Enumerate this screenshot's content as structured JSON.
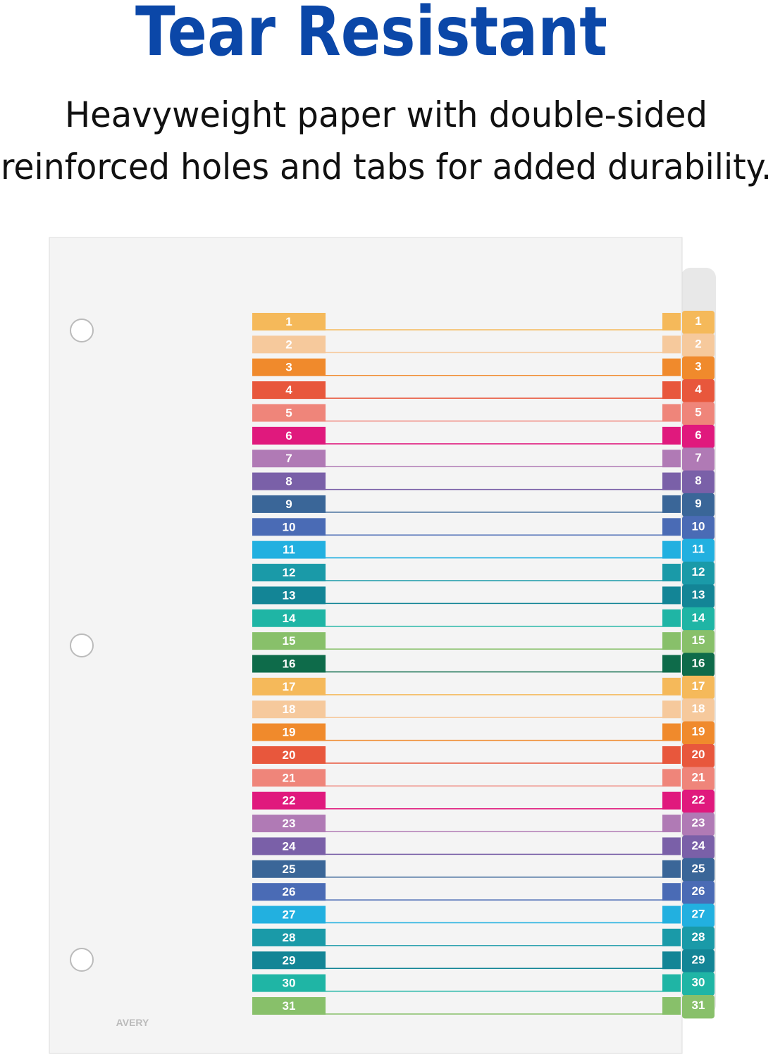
{
  "header": {
    "title": "Tear Resistant",
    "subtitle_lines": [
      "Heavyweight paper with double-sided",
      "reinforced holes and tabs for added durability."
    ]
  },
  "divider": {
    "logo": "AVERY",
    "tabs": [
      {
        "label": "1",
        "color": "#f5b95a"
      },
      {
        "label": "2",
        "color": "#f6c99c"
      },
      {
        "label": "3",
        "color": "#f08a2c"
      },
      {
        "label": "4",
        "color": "#e8573c"
      },
      {
        "label": "5",
        "color": "#ef857a"
      },
      {
        "label": "6",
        "color": "#e0197d"
      },
      {
        "label": "7",
        "color": "#b07ab5"
      },
      {
        "label": "8",
        "color": "#7a60a8"
      },
      {
        "label": "9",
        "color": "#3a6698"
      },
      {
        "label": "10",
        "color": "#4a6bb5"
      },
      {
        "label": "11",
        "color": "#22b0e0"
      },
      {
        "label": "12",
        "color": "#1a9aa8"
      },
      {
        "label": "13",
        "color": "#138596"
      },
      {
        "label": "14",
        "color": "#1fb5a5"
      },
      {
        "label": "15",
        "color": "#88c06a"
      },
      {
        "label": "16",
        "color": "#0e6b4a"
      },
      {
        "label": "17",
        "color": "#f5b95a"
      },
      {
        "label": "18",
        "color": "#f6c99c"
      },
      {
        "label": "19",
        "color": "#f08a2c"
      },
      {
        "label": "20",
        "color": "#e8573c"
      },
      {
        "label": "21",
        "color": "#ef857a"
      },
      {
        "label": "22",
        "color": "#e0197d"
      },
      {
        "label": "23",
        "color": "#b07ab5"
      },
      {
        "label": "24",
        "color": "#7a60a8"
      },
      {
        "label": "25",
        "color": "#3a6698"
      },
      {
        "label": "26",
        "color": "#4a6bb5"
      },
      {
        "label": "27",
        "color": "#22b0e0"
      },
      {
        "label": "28",
        "color": "#1a9aa8"
      },
      {
        "label": "29",
        "color": "#138596"
      },
      {
        "label": "30",
        "color": "#1fb5a5"
      },
      {
        "label": "31",
        "color": "#88c06a"
      }
    ]
  }
}
